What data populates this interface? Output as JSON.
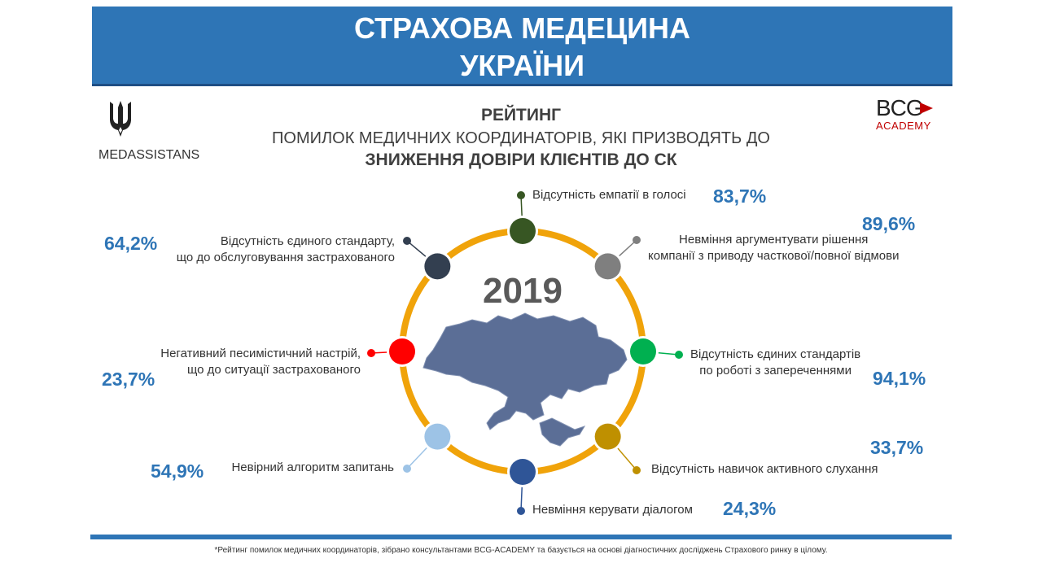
{
  "header": {
    "title_line1": "СТРАХОВА МЕДЕЦИНА",
    "title_line2": "УКРАЇНИ"
  },
  "logos": {
    "left_text": "MEDASSISTANS",
    "right_main": "BCG",
    "right_sub": "ACADEMY"
  },
  "heading": {
    "line1": "РЕЙТИНГ",
    "line2": "ПОМИЛОК МЕДИЧНИХ КООРДИНАТОРІВ, ЯКІ ПРИЗВОДЯТЬ ДО",
    "line3": "ЗНИЖЕННЯ ДОВІРИ КЛІЄНТІВ ДО СК"
  },
  "colors": {
    "accent": "#2e75b6",
    "ring": "#f0a30a",
    "map": "#5b6e96"
  },
  "chart_data": {
    "type": "radial",
    "center_label": "2019",
    "unit": "%",
    "items": [
      {
        "label": "Відсутність емпатії в голосі",
        "label_lines": [
          "Відсутність емпатії в голосі"
        ],
        "value": 83.7,
        "value_text": "83,7%",
        "color": "#375623"
      },
      {
        "label": "Невміння аргументувати рішення компанії з приводу часткової/повної відмови",
        "label_lines": [
          "Невміння аргументувати рішення",
          "компанії з приводу часткової/повної відмови"
        ],
        "value": 89.6,
        "value_text": "89,6%",
        "color": "#7f7f7f"
      },
      {
        "label": "Відсутність єдиних стандартів по роботі з запереченнями",
        "label_lines": [
          "Відсутність єдиних стандартів",
          "по роботі з запереченнями"
        ],
        "value": 94.1,
        "value_text": "94,1%",
        "color": "#00b050"
      },
      {
        "label": "Відсутність навичок активного слухання",
        "label_lines": [
          "Відсутність навичок активного слухання"
        ],
        "value": 33.7,
        "value_text": "33,7%",
        "color": "#bf9000"
      },
      {
        "label": "Невміння керувати діалогом",
        "label_lines": [
          "Невміння керувати діалогом"
        ],
        "value": 24.3,
        "value_text": "24,3%",
        "color": "#2f5597"
      },
      {
        "label": "Невірний алгоритм запитань",
        "label_lines": [
          "Невірний алгоритм запитань"
        ],
        "value": 54.9,
        "value_text": "54,9%",
        "color": "#9dc3e6"
      },
      {
        "label": "Негативний песимістичний настрій, що до ситуації застрахованого",
        "label_lines": [
          "Негативний песимістичний настрій,",
          "що до ситуації застрахованого"
        ],
        "value": 23.7,
        "value_text": "23,7%",
        "color": "#ff0000"
      },
      {
        "label": "Відсутність єдиного стандарту, що до обслуговування застрахованого",
        "label_lines": [
          "Відсутність єдиного стандарту,",
          "що до обслуговування застрахованого"
        ],
        "value": 64.2,
        "value_text": "64,2%",
        "color": "#333f50"
      }
    ]
  },
  "footer": {
    "note": "*Рейтинг помилок медичних координаторів, зібрано консультантами BCG-ACADEMY та базується на основі діагностичних досліджень Страхового ринку в цілому."
  }
}
